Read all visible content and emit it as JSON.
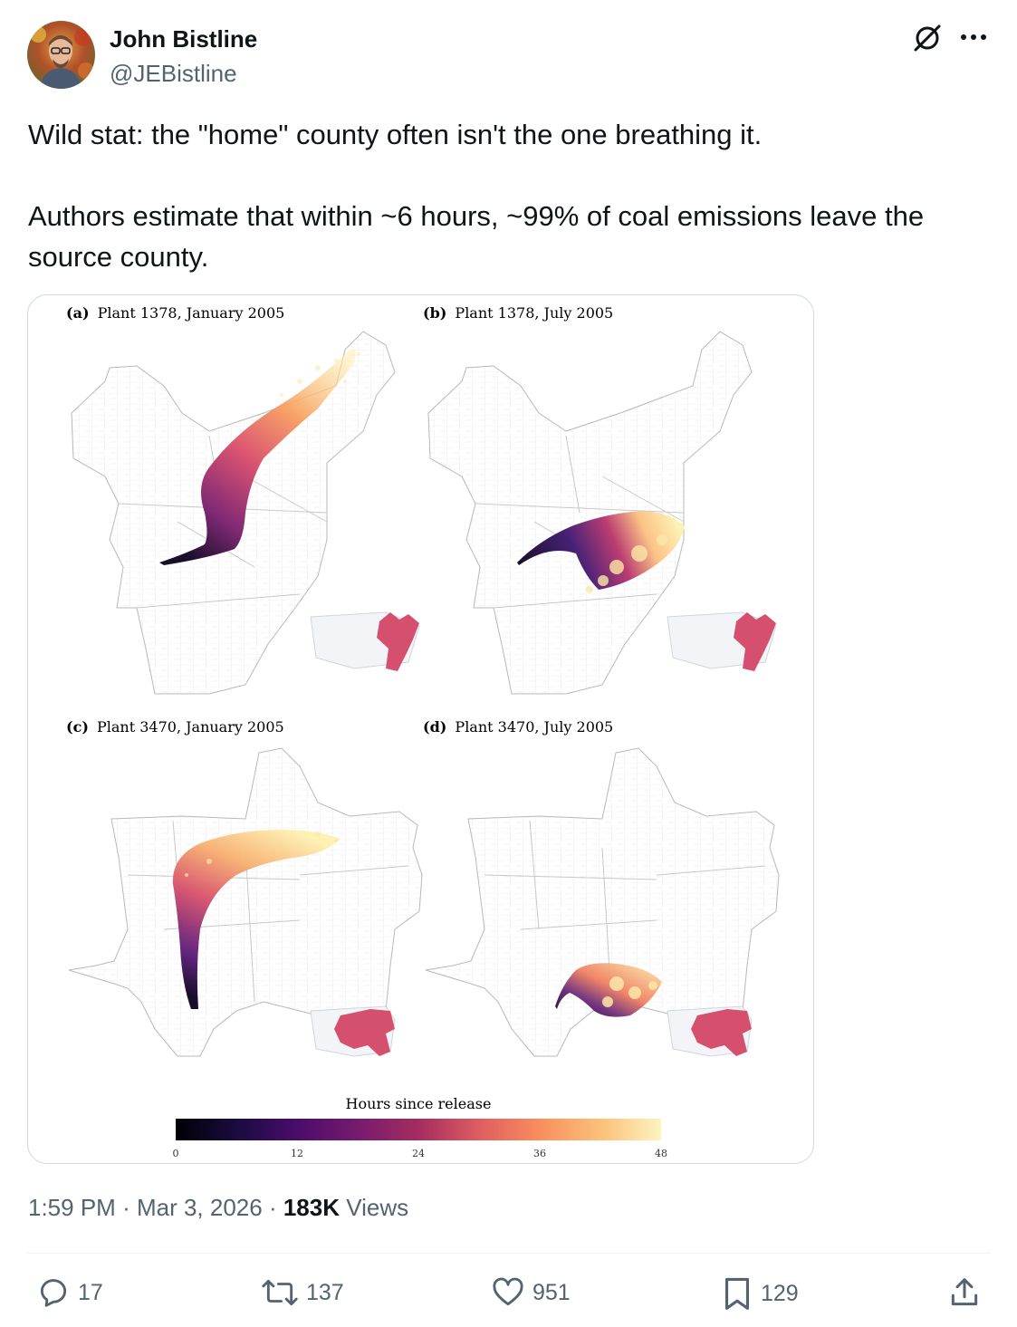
{
  "author": {
    "name": "John Bistline",
    "handle": "@JEBistline"
  },
  "post": {
    "line1": "Wild stat: the \"home\" county often isn't the one breathing it.",
    "line2": "Authors estimate that within ~6 hours, ~99% of coal emissions leave the source county."
  },
  "figure": {
    "panels": [
      {
        "label": "(a)",
        "title": "Plant 1378, January 2005"
      },
      {
        "label": "(b)",
        "title": "Plant 1378, July 2005"
      },
      {
        "label": "(c)",
        "title": "Plant 3470, January 2005"
      },
      {
        "label": "(d)",
        "title": "Plant 3470, July 2005"
      }
    ],
    "colorbar": {
      "title": "Hours since release",
      "ticks": [
        "0",
        "12",
        "24",
        "36",
        "48"
      ]
    }
  },
  "meta": {
    "time": "1:59 PM",
    "date": "Mar 3, 2026",
    "views_count": "183K",
    "views_label": "Views"
  },
  "actions": {
    "replies": "17",
    "reposts": "137",
    "likes": "951",
    "bookmarks": "129"
  },
  "icons": [
    "grok-icon",
    "more-icon",
    "reply-icon",
    "repost-icon",
    "like-icon",
    "bookmark-icon",
    "share-icon"
  ],
  "colors": {
    "plume_start": "#0d0221",
    "plume_mid": "#b8336a",
    "plume_end": "#fdf0b0",
    "inset_region": "#d4506e",
    "text_secondary": "#536471"
  }
}
